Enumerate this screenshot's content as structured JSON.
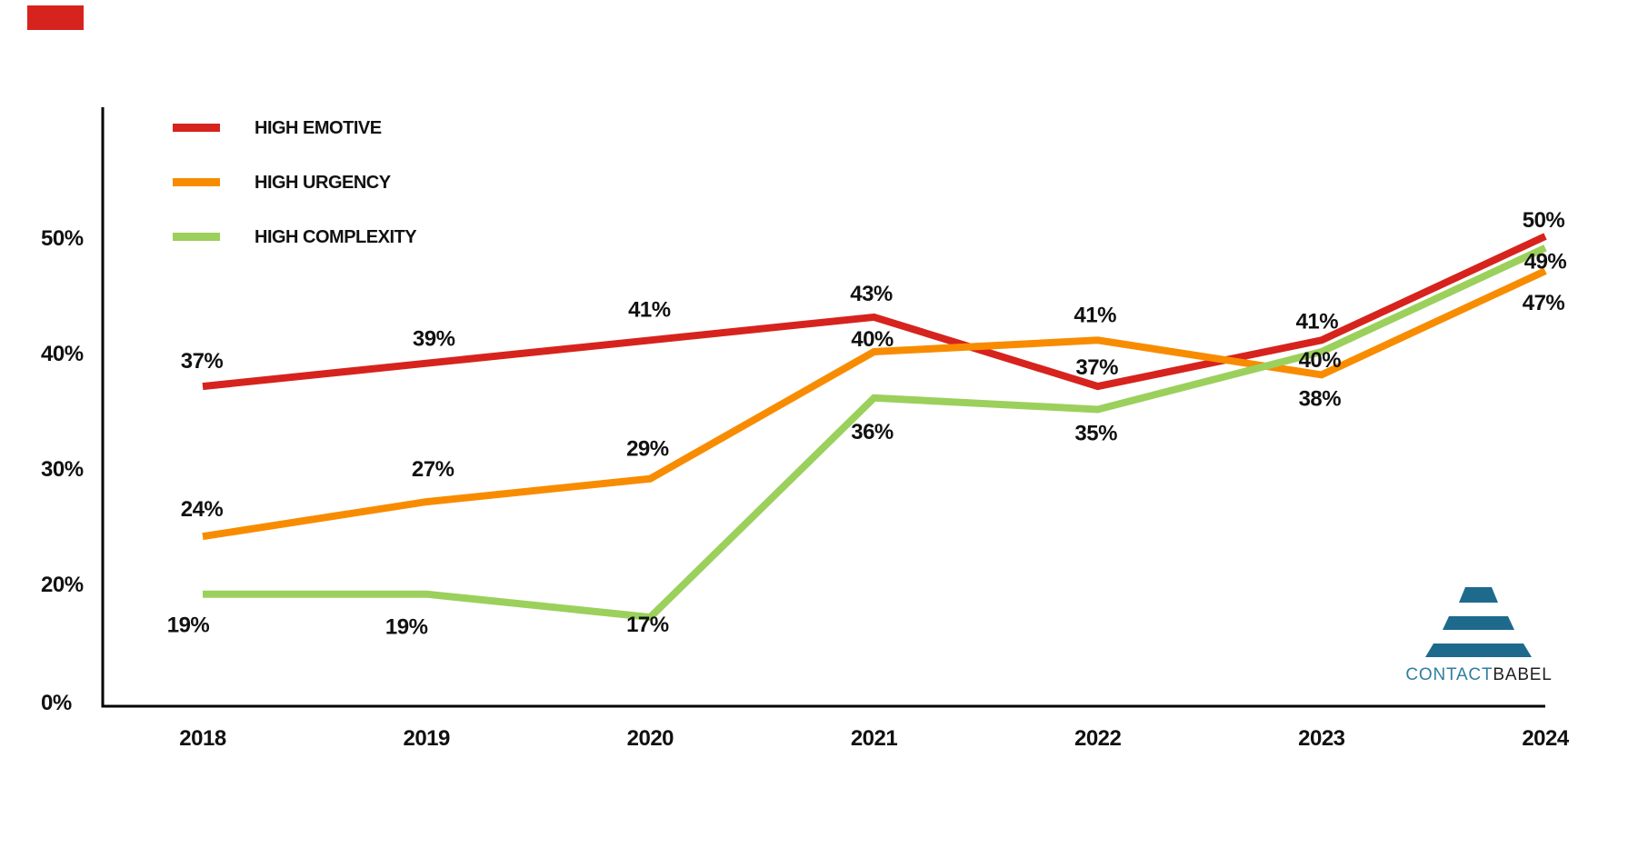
{
  "page": {
    "background": "#ffffff",
    "text_color": "#111111"
  },
  "decorations": {
    "red_mark_color": "#d7231d"
  },
  "chart_data": {
    "type": "line",
    "title": "",
    "xlabel": "",
    "ylabel": "",
    "grid": false,
    "legend_position": "top-left",
    "categories": [
      "2018",
      "2019",
      "2020",
      "2021",
      "2022",
      "2023",
      "2024"
    ],
    "series": [
      {
        "name": "HIGH EMOTIVE",
        "color": "#d7231d",
        "values": [
          37,
          39,
          41,
          43,
          37,
          41,
          50
        ],
        "labels": [
          "37%",
          "39%",
          "41%",
          "43%",
          "37%",
          "41%",
          "50%"
        ],
        "label_offsets": [
          [
            -1,
            -28
          ],
          [
            8,
            -27
          ],
          [
            -1,
            -34
          ],
          [
            -3,
            -26
          ],
          [
            -1,
            -21
          ],
          [
            -5,
            -21
          ],
          [
            -2,
            -18
          ]
        ]
      },
      {
        "name": "HIGH URGENCY",
        "color": "#f88c00",
        "values": [
          24,
          27,
          29,
          40,
          41,
          38,
          47
        ],
        "labels": [
          "24%",
          "27%",
          "29%",
          "40%",
          "41%",
          "38%",
          "47%"
        ],
        "label_offsets": [
          [
            -1,
            -30
          ],
          [
            7,
            -36
          ],
          [
            -3,
            -33
          ],
          [
            -2,
            -14
          ],
          [
            -3,
            -28
          ],
          [
            -2,
            26
          ],
          [
            -2,
            35
          ]
        ]
      },
      {
        "name": "HIGH COMPLEXITY",
        "color": "#9bd05c",
        "values": [
          19,
          19,
          17,
          36,
          35,
          40,
          49
        ],
        "labels": [
          "19%",
          "19%",
          "17%",
          "36%",
          "35%",
          "40%",
          "49%"
        ],
        "label_offsets": [
          [
            -16,
            34
          ],
          [
            -22,
            36
          ],
          [
            -3,
            8
          ],
          [
            -2,
            37
          ],
          [
            -2,
            26
          ],
          [
            -2,
            9
          ],
          [
            0,
            15
          ]
        ]
      }
    ],
    "y_axis": {
      "tick_labels": [
        "50%",
        "40%",
        "30%",
        "20%",
        "0%"
      ],
      "tick_values": [
        50,
        40,
        30,
        20,
        null
      ]
    }
  },
  "logo": {
    "text_primary": "CONTACT",
    "text_secondary": "BABEL",
    "color_primary": "#2e7ea0",
    "color_secondary": "#231f20",
    "pyramid_color": "#1e6a8d"
  }
}
